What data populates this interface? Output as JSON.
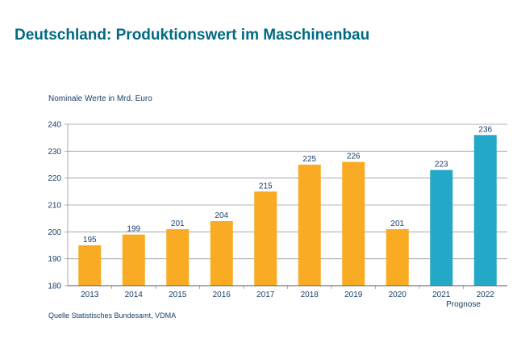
{
  "header": {
    "title": "Deutschland: Produktionswert im Maschinenbau",
    "subtitle": "Nominale Werte in Mrd. Euro"
  },
  "footer": {
    "source": "Quelle Statistisches Bundesamt, VDMA"
  },
  "colors": {
    "actual": "#f9ac23",
    "forecast": "#23a8c8",
    "title": "#006a84",
    "text": "#1a3f6b",
    "grid": "#9a9a9a"
  },
  "chart_data": {
    "type": "bar",
    "title": "Deutschland: Produktionswert im Maschinenbau",
    "ylabel": "Nominale Werte in Mrd. Euro",
    "xlabel": "",
    "categories": [
      "2013",
      "2014",
      "2015",
      "2016",
      "2017",
      "2018",
      "2019",
      "2020",
      "2021",
      "2022"
    ],
    "values": [
      195,
      199,
      201,
      204,
      215,
      225,
      226,
      201,
      223,
      236
    ],
    "data_labels": [
      "195",
      "199",
      "201",
      "204",
      "215",
      "225",
      "226",
      "201",
      "223",
      "236"
    ],
    "forecast_flags": [
      false,
      false,
      false,
      false,
      false,
      false,
      false,
      false,
      true,
      true
    ],
    "forecast_label": "Prognose",
    "ylim": [
      180,
      240
    ],
    "yticks": [
      180,
      190,
      200,
      210,
      220,
      230,
      240
    ],
    "grid": true,
    "legend": "none"
  }
}
